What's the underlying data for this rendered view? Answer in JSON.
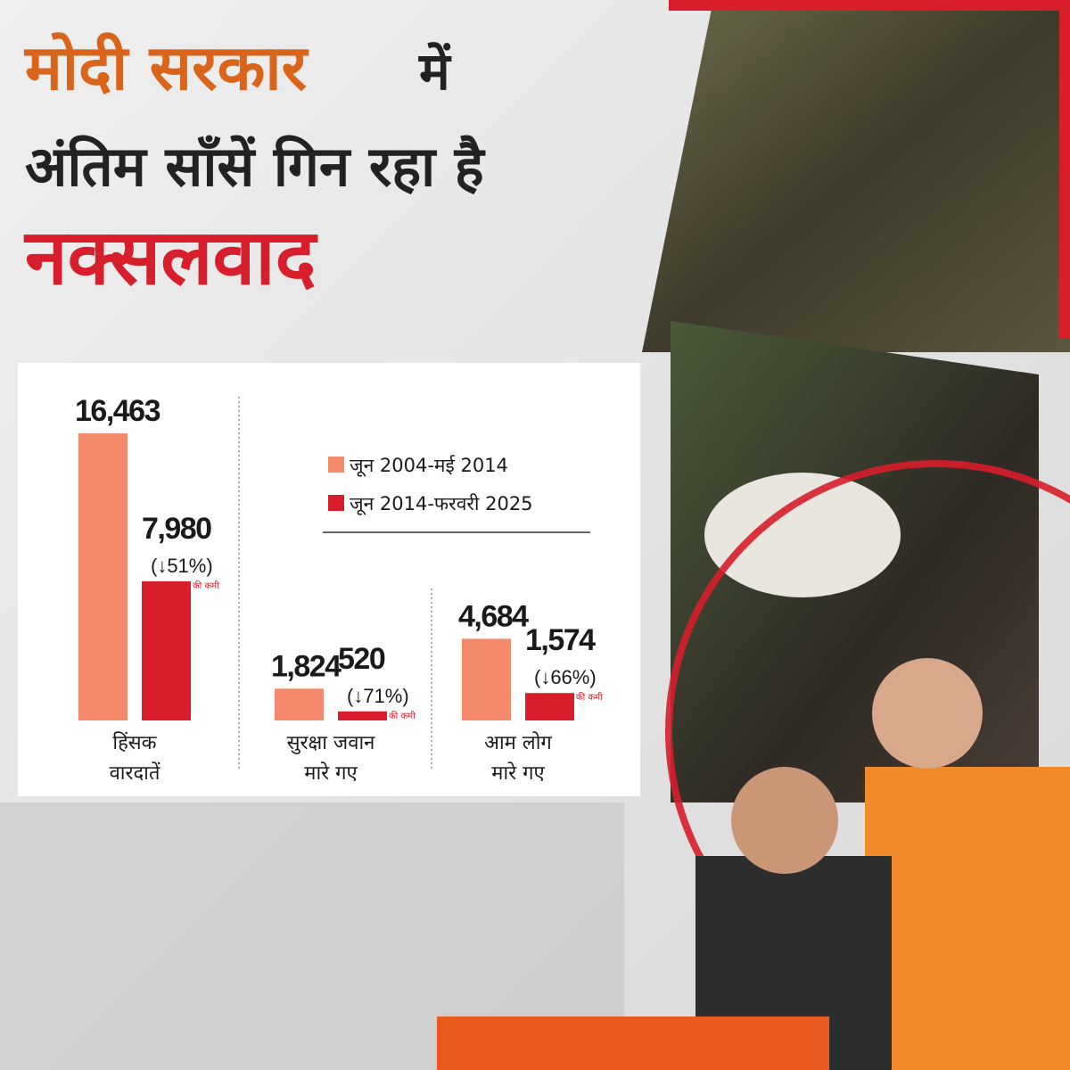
{
  "title": {
    "highlight": "मोदी सरकार",
    "rest": "में",
    "line2": "अंतिम साँसें गिन रहा है",
    "keyword": "नक्सलवाद"
  },
  "chart_data": {
    "type": "bar",
    "categories": [
      [
        "हिंसक",
        "वारदातें"
      ],
      [
        "सुरक्षा जवान",
        "मारे गए"
      ],
      [
        "आम लोग",
        "मारे गए"
      ]
    ],
    "series": [
      {
        "name": "जून 2004-मई 2014",
        "color": "#f4896b",
        "values": [
          16463,
          1824,
          4684
        ],
        "value_labels": [
          "16,463",
          "1,824",
          "4,684"
        ]
      },
      {
        "name": "जून 2014-फरवरी 2025",
        "color": "#d81e2a",
        "values": [
          7980,
          520,
          1574
        ],
        "value_labels": [
          "7,980",
          "520",
          "1,574"
        ],
        "change_labels": [
          "(↓51%)",
          "(↓71%)",
          "(↓66%)"
        ]
      }
    ],
    "change_note": "की कमी"
  }
}
